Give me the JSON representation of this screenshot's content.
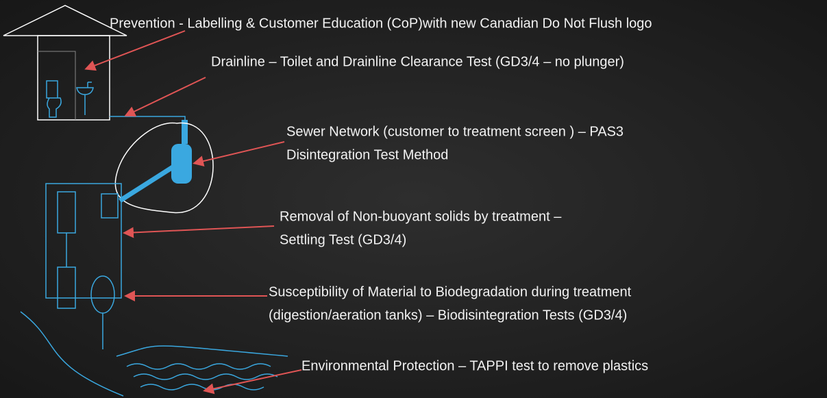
{
  "annotations": [
    {
      "lines": [
        "Prevention - Labelling & Customer Education (CoP)with new Canadian Do Not Flush logo"
      ]
    },
    {
      "lines": [
        "Drainline – Toilet and Drainline Clearance Test (GD3/4 – no plunger)"
      ]
    },
    {
      "lines": [
        "Sewer Network (customer to treatment screen ) – PAS3",
        "Disintegration Test Method"
      ]
    },
    {
      "lines": [
        "Removal of Non-buoyant solids by treatment –",
        "Settling Test (GD3/4)"
      ]
    },
    {
      "lines": [
        "Susceptibility of Material to Biodegradation during treatment",
        "(digestion/aeration tanks) – Biodisintegration Tests (GD3/4)"
      ]
    },
    {
      "lines": [
        "Environmental Protection – TAPPI test to remove plastics"
      ]
    }
  ]
}
